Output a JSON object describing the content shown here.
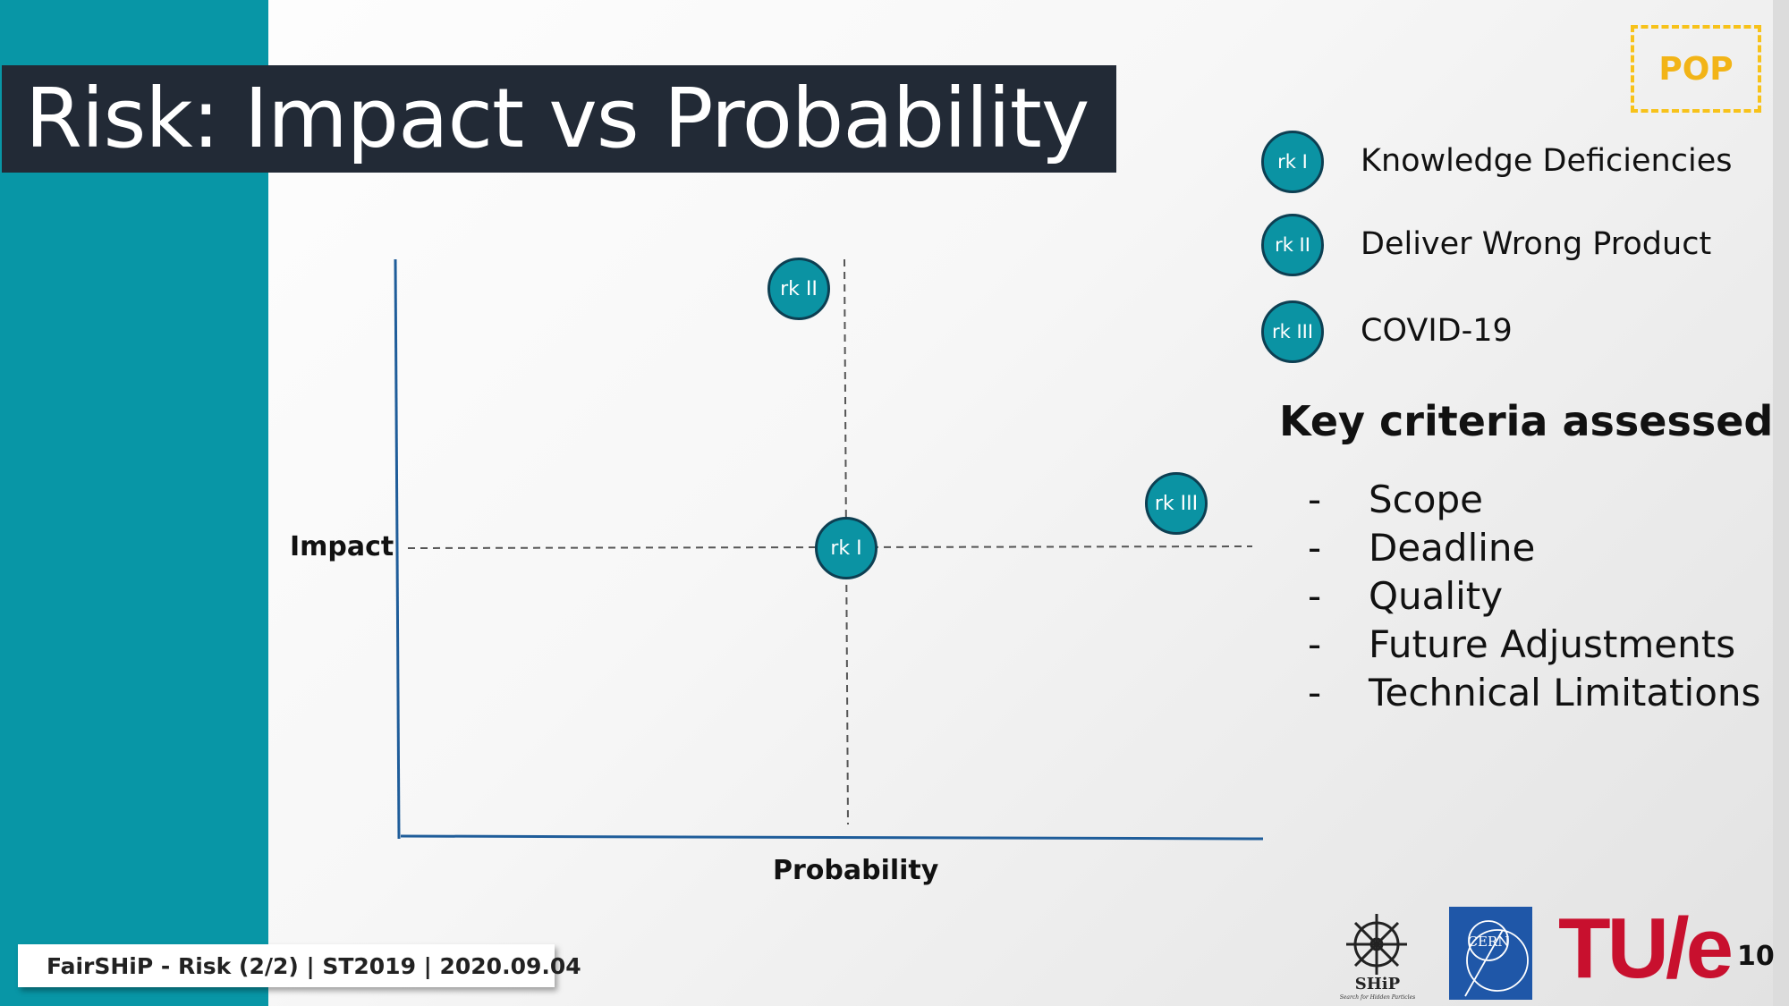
{
  "slide": {
    "title": "Risk: Impact vs Probability",
    "badge": "POP",
    "page_number": "10",
    "footer": "FairSHiP - Risk (2/2) | ST2019 | 2020.09.04"
  },
  "legend": [
    {
      "code": "rk I",
      "label": "Knowledge Deficiencies"
    },
    {
      "code": "rk II",
      "label": "Deliver Wrong Product"
    },
    {
      "code": "rk III",
      "label": "COVID-19"
    }
  ],
  "matrix": {
    "x_label": "Probability",
    "y_label": "Impact",
    "points": [
      {
        "code": "rk II",
        "probability": "medium",
        "impact": "high"
      },
      {
        "code": "rk I",
        "probability": "medium",
        "impact": "medium"
      },
      {
        "code": "rk III",
        "probability": "high",
        "impact": "medium"
      }
    ]
  },
  "criteria": {
    "title": "Key criteria assessed",
    "marker": "-",
    "items": [
      "Scope",
      "Deadline",
      "Quality",
      "Future Adjustments",
      "Technical Limitations"
    ]
  },
  "logos": {
    "ship_name": "SHiP",
    "ship_tagline": "Search for Hidden Particles",
    "cern": "CERN",
    "tue": "TU/e"
  },
  "colors": {
    "accent": "#0896a6",
    "bubble": "#0b93a3",
    "bubble_border": "#0d3f52",
    "axis": "#1f5d9a",
    "badge": "#f2b417",
    "title_bar": "#222a36",
    "tue_red": "#c8102e",
    "cern_blue": "#1f57a8"
  }
}
